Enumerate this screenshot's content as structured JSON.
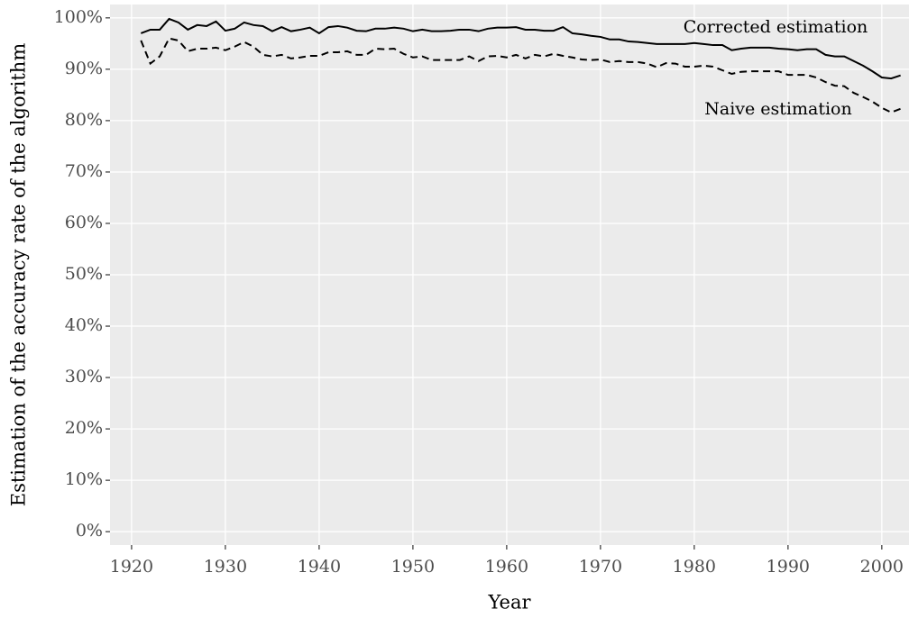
{
  "chart_data": {
    "type": "line",
    "x_label": "Year",
    "y_label": "Estimation of the accuracy rate of the algorithm",
    "x": [
      1921,
      1922,
      1923,
      1924,
      1925,
      1926,
      1927,
      1928,
      1929,
      1930,
      1931,
      1932,
      1933,
      1934,
      1935,
      1936,
      1937,
      1938,
      1939,
      1940,
      1941,
      1942,
      1943,
      1944,
      1945,
      1946,
      1947,
      1948,
      1949,
      1950,
      1951,
      1952,
      1953,
      1954,
      1955,
      1956,
      1957,
      1958,
      1959,
      1960,
      1961,
      1962,
      1963,
      1964,
      1965,
      1966,
      1967,
      1968,
      1969,
      1970,
      1971,
      1972,
      1973,
      1974,
      1975,
      1976,
      1977,
      1978,
      1979,
      1980,
      1981,
      1982,
      1983,
      1984,
      1985,
      1986,
      1987,
      1988,
      1989,
      1990,
      1991,
      1992,
      1993,
      1994,
      1995,
      1996,
      1997,
      1998,
      1999,
      2000,
      2001,
      2002
    ],
    "series": [
      {
        "name": "Corrected estimation",
        "color": "#000000",
        "linestyle": "solid",
        "values": [
          97.0,
          97.7,
          97.7,
          99.8,
          99.1,
          97.7,
          98.6,
          98.4,
          99.3,
          97.5,
          97.9,
          99.1,
          98.6,
          98.4,
          97.4,
          98.2,
          97.4,
          97.7,
          98.1,
          97.0,
          98.2,
          98.4,
          98.1,
          97.5,
          97.4,
          97.9,
          97.9,
          98.1,
          97.9,
          97.4,
          97.7,
          97.4,
          97.4,
          97.5,
          97.7,
          97.7,
          97.4,
          97.9,
          98.1,
          98.1,
          98.2,
          97.7,
          97.7,
          97.5,
          97.5,
          98.2,
          97.0,
          96.8,
          96.5,
          96.3,
          95.8,
          95.8,
          95.4,
          95.3,
          95.1,
          94.9,
          94.9,
          94.9,
          94.9,
          95.1,
          94.9,
          94.7,
          94.7,
          93.7,
          94.0,
          94.2,
          94.2,
          94.2,
          94.0,
          93.9,
          93.7,
          93.9,
          93.9,
          92.8,
          92.5,
          92.5,
          91.6,
          90.7,
          89.6,
          88.4,
          88.2,
          88.8
        ]
      },
      {
        "name": "Naive estimation",
        "color": "#000000",
        "linestyle": "dashed",
        "values": [
          95.6,
          91.1,
          92.5,
          96.0,
          95.6,
          93.5,
          94.0,
          94.0,
          94.2,
          93.7,
          94.4,
          95.3,
          94.4,
          92.8,
          92.5,
          92.8,
          92.1,
          92.3,
          92.6,
          92.6,
          93.3,
          93.3,
          93.5,
          92.8,
          92.8,
          94.0,
          93.9,
          94.0,
          93.0,
          92.3,
          92.5,
          91.8,
          91.8,
          91.8,
          91.8,
          92.5,
          91.6,
          92.5,
          92.6,
          92.3,
          92.8,
          92.1,
          92.8,
          92.5,
          93.0,
          92.6,
          92.3,
          91.9,
          91.8,
          91.9,
          91.4,
          91.6,
          91.4,
          91.4,
          91.1,
          90.4,
          91.2,
          91.1,
          90.5,
          90.5,
          90.7,
          90.5,
          89.8,
          89.1,
          89.5,
          89.6,
          89.6,
          89.6,
          89.6,
          88.9,
          88.9,
          88.9,
          88.4,
          87.5,
          86.8,
          86.7,
          85.4,
          84.6,
          83.7,
          82.5,
          81.6,
          82.3
        ]
      }
    ],
    "xlim": [
      1917.7,
      2002.9
    ],
    "ylim": [
      -2.6,
      102.6
    ],
    "xticks": [
      1920,
      1930,
      1940,
      1950,
      1960,
      1970,
      1980,
      1990,
      2000
    ],
    "yticks": [
      {
        "value": 0,
        "label": "0%"
      },
      {
        "value": 10,
        "label": "10%"
      },
      {
        "value": 20,
        "label": "20%"
      },
      {
        "value": 30,
        "label": "30%"
      },
      {
        "value": 40,
        "label": "40%"
      },
      {
        "value": 50,
        "label": "50%"
      },
      {
        "value": 60,
        "label": "60%"
      },
      {
        "value": 70,
        "label": "70%"
      },
      {
        "value": 80,
        "label": "80%"
      },
      {
        "value": 90,
        "label": "90%"
      },
      {
        "value": 100,
        "label": "100%"
      }
    ],
    "grid": true,
    "background": "#ebebeb"
  }
}
